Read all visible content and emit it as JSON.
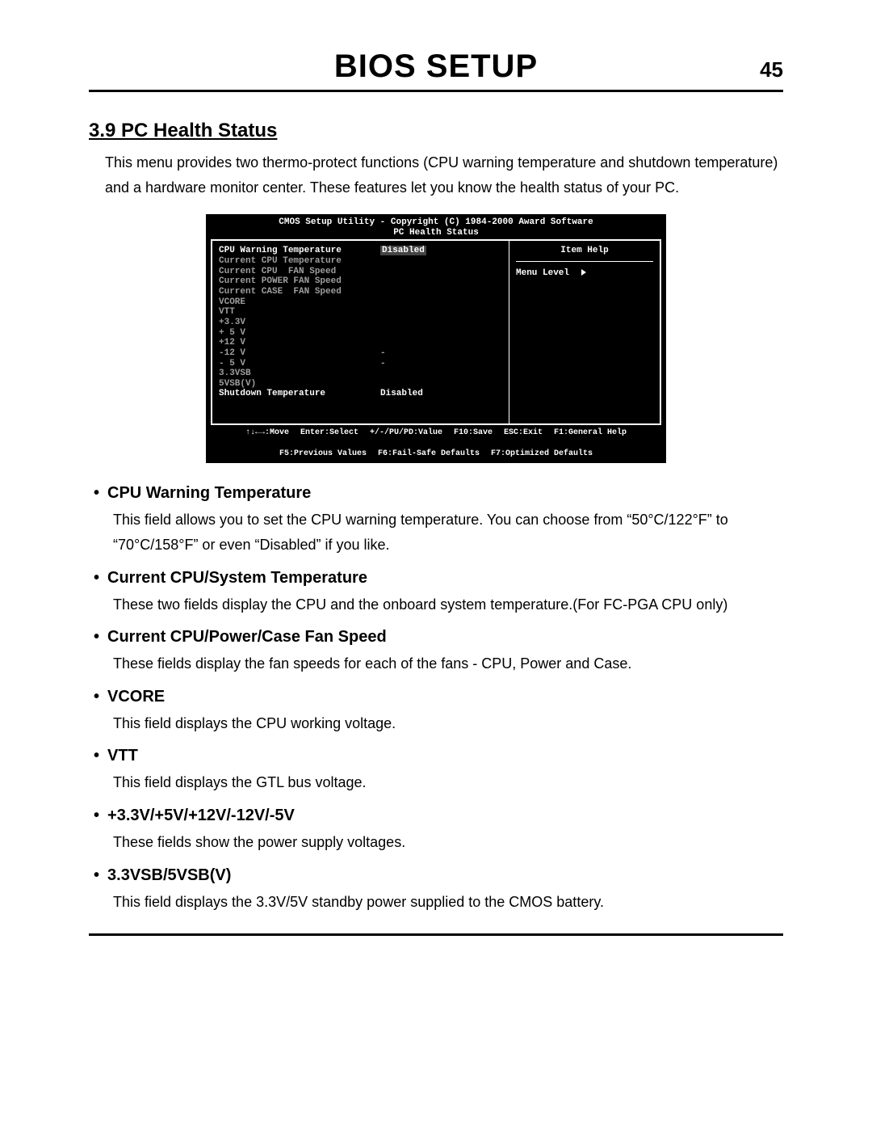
{
  "header": {
    "title": "BIOS SETUP",
    "page_number": "45"
  },
  "section": {
    "number_title": "3.9 PC Health Status",
    "intro": "This menu provides two thermo-protect functions (CPU warning temperature and shutdown temperature) and a hardware monitor center.  These features let you know the health status of your PC."
  },
  "bios": {
    "title_line1": "CMOS Setup Utility - Copyright (C) 1984-2000 Award Software",
    "title_line2": "PC Health Status",
    "right": {
      "help_title": "Item Help",
      "menu_level": "Menu Level"
    },
    "rows": [
      {
        "label": "CPU Warning Temperature",
        "value": "Disabled",
        "hl": true,
        "val_hl": true
      },
      {
        "label": "Current CPU Temperature",
        "value": ""
      },
      {
        "label": "Current CPU  FAN Speed",
        "value": ""
      },
      {
        "label": "Current POWER FAN Speed",
        "value": ""
      },
      {
        "label": "Current CASE  FAN Speed",
        "value": ""
      },
      {
        "label": "VCORE",
        "value": ""
      },
      {
        "label": "VTT",
        "value": ""
      },
      {
        "label": "+3.3V",
        "value": ""
      },
      {
        "label": "+ 5 V",
        "value": ""
      },
      {
        "label": "+12 V",
        "value": ""
      },
      {
        "label": "-12 V",
        "value": "-"
      },
      {
        "label": "- 5 V",
        "value": "-"
      },
      {
        "label": "3.3VSB",
        "value": ""
      },
      {
        "label": "5VSB(V)",
        "value": ""
      },
      {
        "label": "Shutdown Temperature",
        "value": "Disabled",
        "hl": true
      }
    ],
    "footer": [
      "↑↓←→:Move",
      "Enter:Select",
      "+/-/PU/PD:Value",
      "F10:Save",
      "ESC:Exit",
      "F1:General Help",
      "F5:Previous Values",
      "F6:Fail-Safe Defaults",
      "F7:Optimized Defaults"
    ]
  },
  "bullets": [
    {
      "title": "CPU Warning Temperature",
      "body": "This field allows you to set the CPU warning temperature.  You can choose from “50°C/122°F” to “70°C/158°F” or even “Disabled” if you like."
    },
    {
      "title": "Current CPU/System Temperature",
      "body": "These two fields display the CPU and the onboard system temperature.(For FC-PGA CPU only)"
    },
    {
      "title": "Current CPU/Power/Case Fan Speed",
      "body": "These fields display the fan speeds for each of the fans - CPU, Power and Case."
    },
    {
      "title": "VCORE",
      "body": "This field displays the CPU working voltage."
    },
    {
      "title": "VTT",
      "body": "This field displays the GTL bus voltage."
    },
    {
      "title": "+3.3V/+5V/+12V/-12V/-5V",
      "body": "These fields show the power supply voltages."
    },
    {
      "title": "3.3VSB/5VSB(V)",
      "body": "This field displays the 3.3V/5V standby power supplied to the CMOS battery."
    }
  ]
}
